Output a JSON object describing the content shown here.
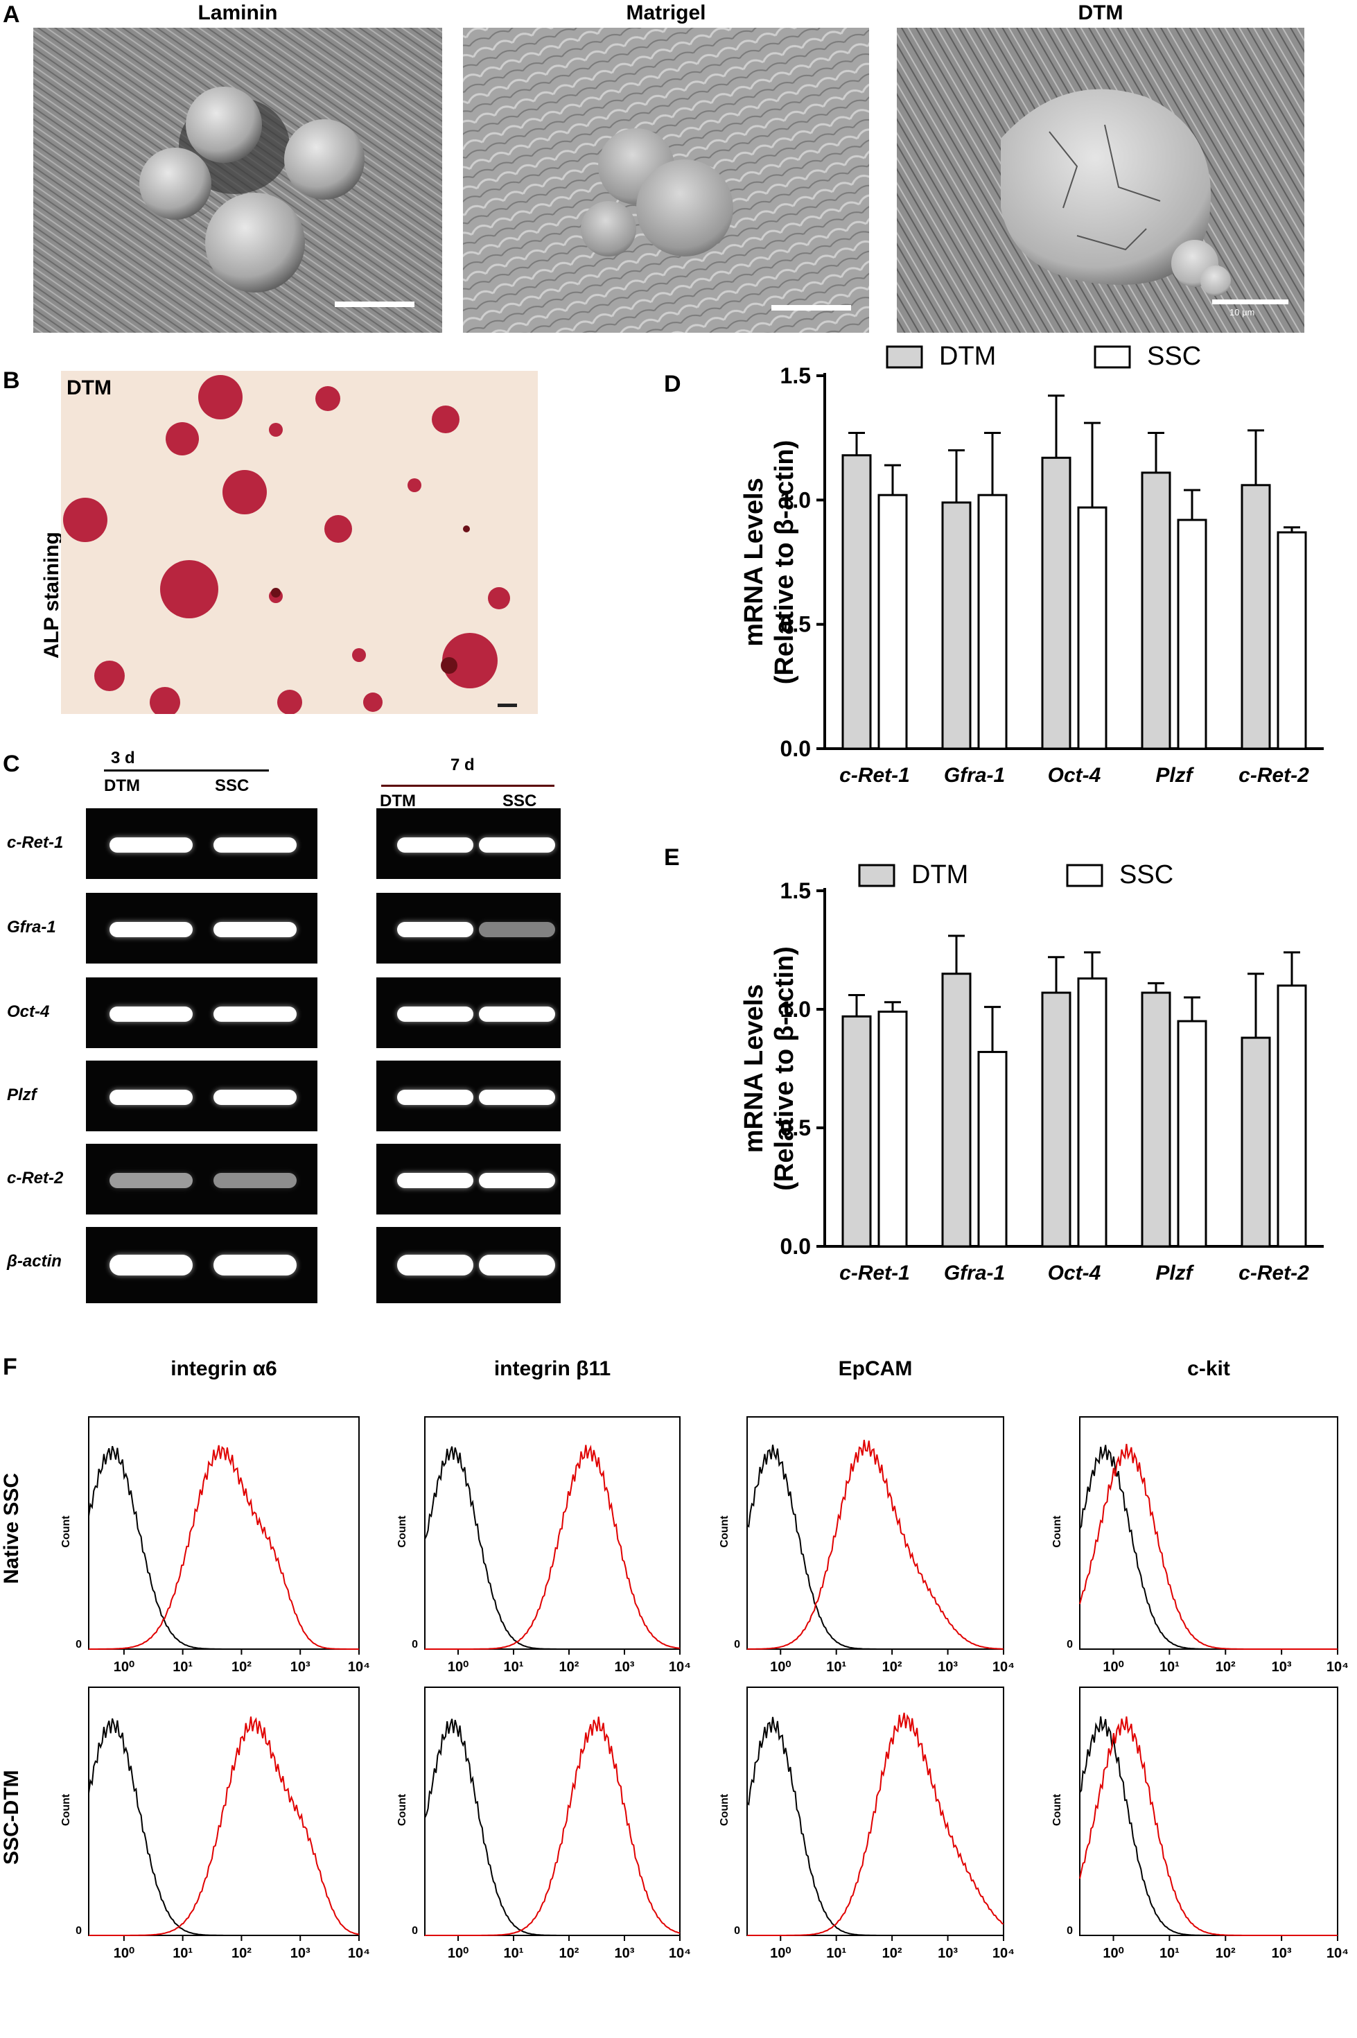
{
  "panels": {
    "a": {
      "label": "A",
      "titles": [
        "Laminin",
        "Matrigel",
        "DTM"
      ],
      "scale_text": "10 μm"
    },
    "b": {
      "label": "B",
      "inset": "DTM",
      "ylabel": "ALP staining"
    },
    "c": {
      "label": "C",
      "groups": [
        {
          "time": "3 d",
          "cols": [
            "DTM",
            "SSC"
          ]
        },
        {
          "time": "7 d",
          "cols": [
            "DTM",
            "SSC"
          ]
        }
      ],
      "genes": [
        "c-Ret-1",
        "Gfra-1",
        "Oct-4",
        "Plzf",
        "c-Ret-2",
        "β-actin"
      ]
    },
    "f": {
      "label": "F",
      "markers": [
        "integrin α6",
        "integrin β11",
        "EpCAM",
        "c-kit"
      ],
      "rows": [
        "Native SSC",
        "SSC-DTM"
      ],
      "count_label": "Count",
      "zero_label": "0"
    }
  },
  "chart_data": [
    {
      "panel": "D",
      "type": "bar",
      "legend": [
        "DTM",
        "SSC"
      ],
      "categories": [
        "c-Ret-1",
        "Gfra-1",
        "Oct-4",
        "Plzf",
        "c-Ret-2"
      ],
      "series": [
        {
          "name": "DTM",
          "values": [
            1.18,
            0.99,
            1.17,
            1.11,
            1.06
          ],
          "errors": [
            0.09,
            0.21,
            0.25,
            0.16,
            0.22
          ],
          "color": "#d3d3d3"
        },
        {
          "name": "SSC",
          "values": [
            1.02,
            1.02,
            0.97,
            0.92,
            0.87
          ],
          "errors": [
            0.12,
            0.25,
            0.34,
            0.12,
            0.02
          ],
          "color": "#ffffff"
        }
      ],
      "ylabel_line1": "mRNA Levels",
      "ylabel_line2": "(Relative to β-actin)",
      "ylim": [
        0,
        1.5
      ],
      "yticks": [
        "0.0",
        "0.5",
        "1.0",
        "1.5"
      ]
    },
    {
      "panel": "E",
      "type": "bar",
      "legend": [
        "DTM",
        "SSC"
      ],
      "categories": [
        "c-Ret-1",
        "Gfra-1",
        "Oct-4",
        "Plzf",
        "c-Ret-2"
      ],
      "series": [
        {
          "name": "DTM",
          "values": [
            0.97,
            1.15,
            1.07,
            1.07,
            0.88
          ],
          "errors": [
            0.09,
            0.16,
            0.15,
            0.04,
            0.27
          ],
          "color": "#d3d3d3"
        },
        {
          "name": "SSC",
          "values": [
            0.99,
            0.82,
            1.13,
            0.95,
            1.1
          ],
          "errors": [
            0.04,
            0.19,
            0.11,
            0.1,
            0.14
          ],
          "color": "#ffffff"
        }
      ],
      "ylabel_line1": "mRNA Levels",
      "ylabel_line2": "(Relative to β-actin)",
      "ylim": [
        0,
        1.5
      ],
      "yticks": [
        "0.0",
        "0.5",
        "1.0",
        "1.5"
      ]
    },
    {
      "panel": "F",
      "type": "histogram",
      "xaxis": "log",
      "xticks": [
        "10⁰",
        "10¹",
        "10²",
        "10³",
        "10⁴"
      ],
      "series_colors": {
        "isotype": "#000000",
        "stained": "#e00000"
      },
      "peaks_log10": {
        "Native SSC": {
          "integrin α6": [
            -0.2,
            1.65
          ],
          "integrin β11": [
            -0.1,
            2.35
          ],
          "EpCAM": [
            -0.15,
            1.5
          ],
          "c-kit": [
            -0.15,
            0.25
          ]
        },
        "SSC-DTM": {
          "integrin α6": [
            -0.2,
            2.2
          ],
          "integrin β11": [
            -0.1,
            2.5
          ],
          "EpCAM": [
            -0.15,
            2.2
          ],
          "c-kit": [
            -0.2,
            0.2
          ]
        }
      }
    }
  ]
}
